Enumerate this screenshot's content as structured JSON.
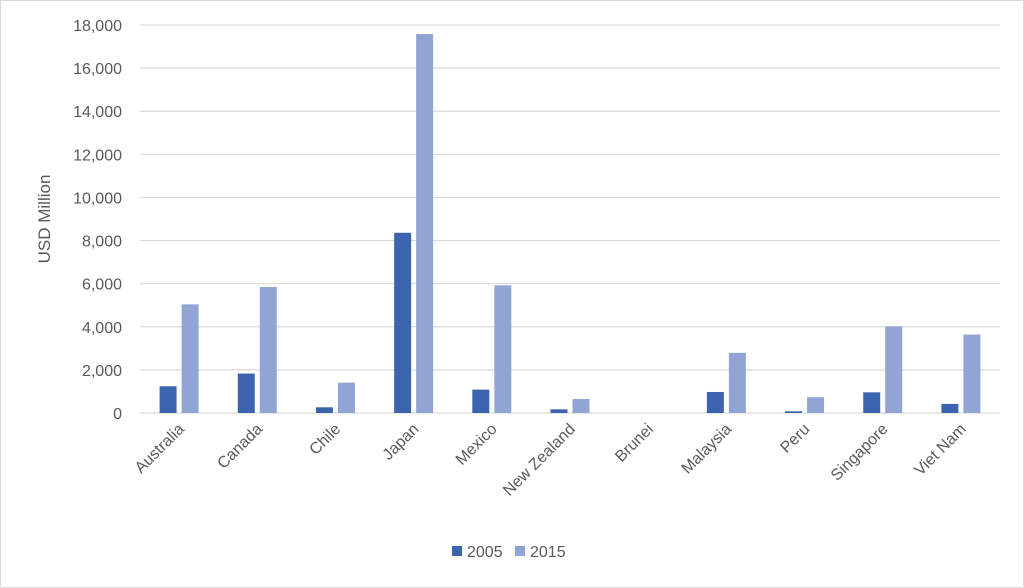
{
  "chart_data": {
    "type": "bar",
    "title": "",
    "xlabel": "",
    "ylabel": "USD Million",
    "ylim": [
      0,
      18000
    ],
    "yticks": [
      0,
      2000,
      4000,
      6000,
      8000,
      10000,
      12000,
      14000,
      16000,
      18000
    ],
    "ytick_labels": [
      "0",
      "2,000",
      "4,000",
      "6,000",
      "8,000",
      "10,000",
      "12,000",
      "14,000",
      "16,000",
      "18,000"
    ],
    "grid": true,
    "legend_position": "bottom",
    "categories": [
      "Australia",
      "Canada",
      "Chile",
      "Japan",
      "Mexico",
      "New Zealand",
      "Brunei",
      "Malaysia",
      "Peru",
      "Singapore",
      "Viet Nam"
    ],
    "series": [
      {
        "name": "2005",
        "color": "#3c64ae",
        "values": [
          1240,
          1830,
          265,
          8360,
          1085,
          170,
          0,
          975,
          80,
          960,
          420
        ]
      },
      {
        "name": "2015",
        "color": "#91a5d5",
        "values": [
          5040,
          5845,
          1410,
          17580,
          5920,
          650,
          0,
          2790,
          730,
          4015,
          3640
        ]
      }
    ]
  }
}
